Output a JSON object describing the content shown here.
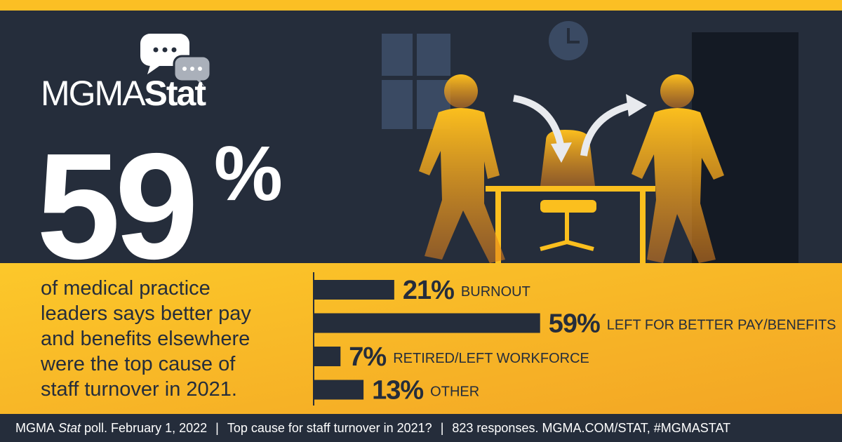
{
  "logo": {
    "light": "MGMA",
    "bold": "Stat"
  },
  "headline": {
    "number": "59",
    "unit": "%"
  },
  "description": [
    "of medical practice",
    "leaders says better pay",
    "and benefits elsewhere",
    "were the top cause of",
    "staff turnover in 2021."
  ],
  "chart_data": {
    "type": "bar",
    "orientation": "horizontal",
    "categories": [
      "BURNOUT",
      "LEFT FOR BETTER PAY/BENEFITS",
      "RETIRED/LEFT WORKFORCE",
      "OTHER"
    ],
    "values": [
      21,
      59,
      7,
      13
    ],
    "value_labels": [
      "21%",
      "59%",
      "7%",
      "13%"
    ],
    "color": "#252d3b"
  },
  "footer": {
    "source_prefix": "MGMA",
    "source_italic": "Stat",
    "source_suffix": "poll. February 1, 2022",
    "separator": "|",
    "question": "Top cause for staff turnover in 2021?",
    "responses": "823 responses. MGMA.COM/STAT, #MGMASTAT"
  }
}
